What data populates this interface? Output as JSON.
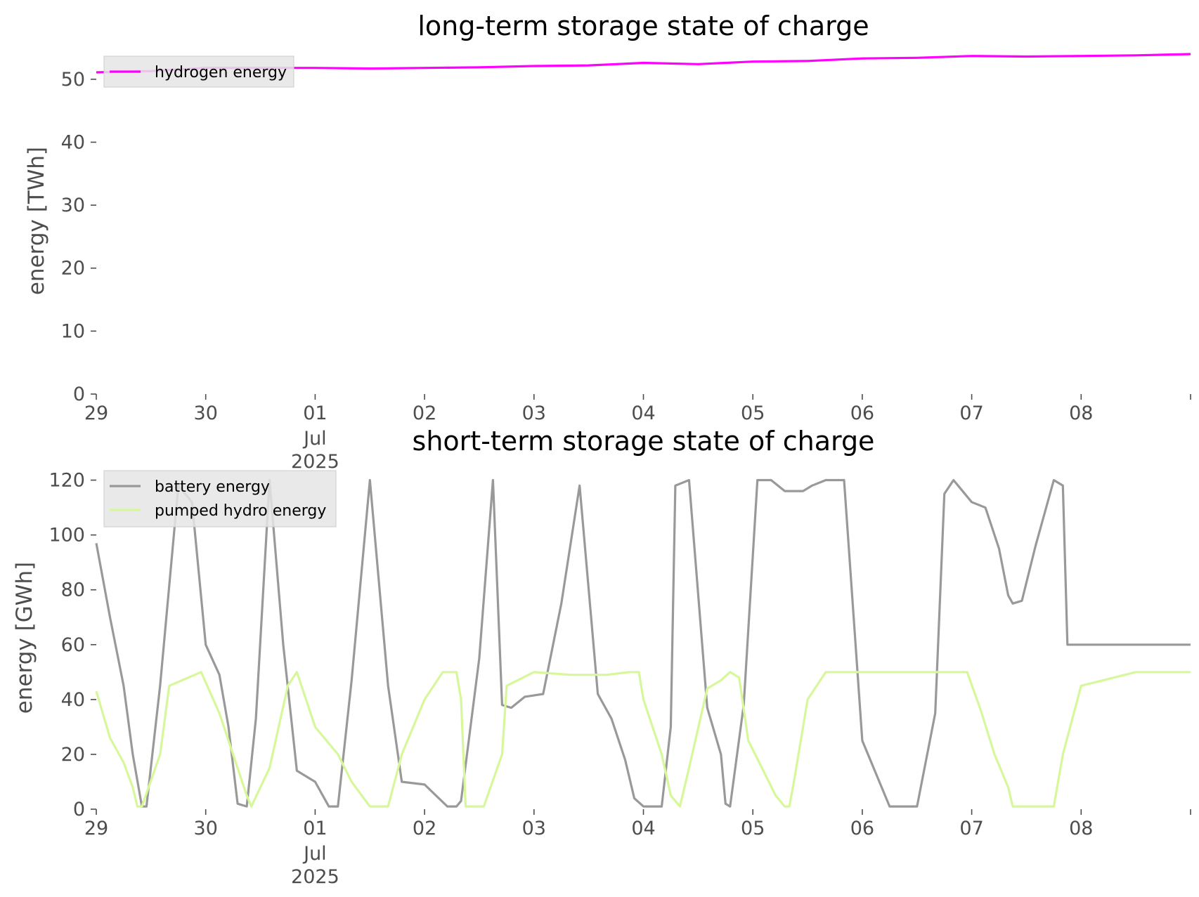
{
  "chart_data": [
    {
      "type": "line",
      "title": "long-term storage state of charge",
      "ylabel": "energy [TWh]",
      "xlabel": "",
      "ylim": [
        0,
        55
      ],
      "yticks": [
        0,
        10,
        20,
        30,
        40,
        50
      ],
      "x_range": [
        "2025-06-29 00:00",
        "2025-07-08 24:00"
      ],
      "x_ticks": [
        {
          "x": "2025-06-29",
          "label": "29"
        },
        {
          "x": "2025-06-30",
          "label": "30"
        },
        {
          "x": "2025-07-01",
          "label": "01",
          "sub": [
            "Jul",
            "2025"
          ]
        },
        {
          "x": "2025-07-02",
          "label": "02"
        },
        {
          "x": "2025-07-03",
          "label": "03"
        },
        {
          "x": "2025-07-04",
          "label": "04"
        },
        {
          "x": "2025-07-05",
          "label": "05"
        },
        {
          "x": "2025-07-06",
          "label": "06"
        },
        {
          "x": "2025-07-07",
          "label": "07"
        },
        {
          "x": "2025-07-08",
          "label": "08"
        }
      ],
      "legend": "top-left",
      "grid": false,
      "series": [
        {
          "name": "hydrogen energy",
          "color": "#ff00ff",
          "x": [
            "2025-06-29 00:00",
            "2025-06-29 12:00",
            "2025-06-30 00:00",
            "2025-06-30 12:00",
            "2025-07-01 00:00",
            "2025-07-01 12:00",
            "2025-07-02 00:00",
            "2025-07-02 12:00",
            "2025-07-03 00:00",
            "2025-07-03 12:00",
            "2025-07-04 00:00",
            "2025-07-04 12:00",
            "2025-07-05 00:00",
            "2025-07-05 12:00",
            "2025-07-06 00:00",
            "2025-07-06 12:00",
            "2025-07-07 00:00",
            "2025-07-07 12:00",
            "2025-07-08 00:00",
            "2025-07-08 12:00",
            "2025-07-08 24:00"
          ],
          "values": [
            51.1,
            51.3,
            51.8,
            51.8,
            51.8,
            51.7,
            51.8,
            51.9,
            52.1,
            52.2,
            52.6,
            52.4,
            52.8,
            52.9,
            53.3,
            53.4,
            53.7,
            53.6,
            53.7,
            53.8,
            54.0
          ]
        }
      ]
    },
    {
      "type": "line",
      "title": "short-term storage state of charge",
      "ylabel": "energy [GWh]",
      "xlabel": "",
      "ylim": [
        0,
        125
      ],
      "yticks": [
        0,
        20,
        40,
        60,
        80,
        100,
        120
      ],
      "x_range": [
        "2025-06-29 00:00",
        "2025-07-08 24:00"
      ],
      "x_ticks": [
        {
          "x": "2025-06-29",
          "label": "29"
        },
        {
          "x": "2025-06-30",
          "label": "30"
        },
        {
          "x": "2025-07-01",
          "label": "01",
          "sub": [
            "Jul",
            "2025"
          ]
        },
        {
          "x": "2025-07-02",
          "label": "02"
        },
        {
          "x": "2025-07-03",
          "label": "03"
        },
        {
          "x": "2025-07-04",
          "label": "04"
        },
        {
          "x": "2025-07-05",
          "label": "05"
        },
        {
          "x": "2025-07-06",
          "label": "06"
        },
        {
          "x": "2025-07-07",
          "label": "07"
        },
        {
          "x": "2025-07-08",
          "label": "08"
        }
      ],
      "legend": "top-left",
      "grid": false,
      "series": [
        {
          "name": "battery energy",
          "color": "#999999",
          "x": [
            "2025-06-29 00:00",
            "2025-06-29 03:00",
            "2025-06-29 06:00",
            "2025-06-29 08:00",
            "2025-06-29 10:00",
            "2025-06-29 11:00",
            "2025-06-29 14:00",
            "2025-06-29 18:00",
            "2025-06-29 21:00",
            "2025-06-30 00:00",
            "2025-06-30 03:00",
            "2025-06-30 05:00",
            "2025-06-30 07:00",
            "2025-06-30 09:00",
            "2025-06-30 11:00",
            "2025-06-30 14:00",
            "2025-06-30 17:00",
            "2025-06-30 20:00",
            "2025-07-01 00:00",
            "2025-07-01 03:00",
            "2025-07-01 05:00",
            "2025-07-01 08:00",
            "2025-07-01 12:00",
            "2025-07-01 16:00",
            "2025-07-01 19:00",
            "2025-07-02 00:00",
            "2025-07-02 05:00",
            "2025-07-02 07:00",
            "2025-07-02 08:00",
            "2025-07-02 12:00",
            "2025-07-02 15:00",
            "2025-07-02 17:00",
            "2025-07-02 19:00",
            "2025-07-02 22:00",
            "2025-07-03 02:00",
            "2025-07-03 06:00",
            "2025-07-03 10:00",
            "2025-07-03 14:00",
            "2025-07-03 17:00",
            "2025-07-03 20:00",
            "2025-07-03 22:00",
            "2025-07-04 00:00",
            "2025-07-04 04:00",
            "2025-07-04 06:00",
            "2025-07-04 07:00",
            "2025-07-04 10:00",
            "2025-07-04 14:00",
            "2025-07-04 17:00",
            "2025-07-04 18:00",
            "2025-07-04 19:00",
            "2025-07-04 22:00",
            "2025-07-05 01:00",
            "2025-07-05 04:00",
            "2025-07-05 07:00",
            "2025-07-05 08:00",
            "2025-07-05 11:00",
            "2025-07-05 13:00",
            "2025-07-05 16:00",
            "2025-07-05 20:00",
            "2025-07-06 00:00",
            "2025-07-06 06:00",
            "2025-07-06 12:00",
            "2025-07-06 16:00",
            "2025-07-06 18:00",
            "2025-07-06 20:00",
            "2025-07-07 00:00",
            "2025-07-07 03:00",
            "2025-07-07 06:00",
            "2025-07-07 08:00",
            "2025-07-07 09:00",
            "2025-07-07 11:00",
            "2025-07-07 14:00",
            "2025-07-07 18:00",
            "2025-07-07 20:00",
            "2025-07-07 21:00",
            "2025-07-08 00:00",
            "2025-07-08 02:00",
            "2025-07-08 04:00",
            "2025-07-08 06:00",
            "2025-07-08 08:00",
            "2025-07-08 10:00",
            "2025-07-08 13:00",
            "2025-07-08 15:00",
            "2025-07-08 17:00",
            "2025-07-08 18:00",
            "2025-07-08 20:00",
            "2025-07-08 22:00",
            "2025-07-08 24:00"
          ],
          "values": [
            97,
            70,
            45,
            20,
            1,
            1,
            45,
            118,
            112,
            60,
            49,
            30,
            2,
            1,
            33,
            120,
            60,
            14,
            10,
            1,
            1,
            47,
            120,
            45,
            10,
            9,
            1,
            1,
            3,
            55,
            120,
            38,
            37,
            41,
            42,
            75,
            118,
            42,
            33,
            18,
            4,
            1,
            1,
            30,
            118,
            120,
            37,
            20,
            2,
            1,
            38,
            120,
            120,
            116,
            116,
            116,
            118,
            120,
            120,
            25,
            1,
            1,
            35,
            115,
            120,
            112,
            110,
            95,
            78,
            75,
            76,
            96,
            120,
            118,
            60,
            60,
            60,
            60,
            60,
            60,
            60,
            60,
            60,
            60,
            60,
            60,
            60,
            60
          ],
          "note_ignore": false
        },
        {
          "name": "pumped hydro energy",
          "color": "#d6f79a",
          "x": [
            "2025-06-29 00:00",
            "2025-06-29 03:00",
            "2025-06-29 06:00",
            "2025-06-29 08:00",
            "2025-06-29 09:00",
            "2025-06-29 10:00",
            "2025-06-29 14:00",
            "2025-06-29 16:00",
            "2025-06-29 23:00",
            "2025-06-30 03:00",
            "2025-06-30 06:00",
            "2025-06-30 09:00",
            "2025-06-30 10:00",
            "2025-06-30 14:00",
            "2025-06-30 18:00",
            "2025-06-30 20:00",
            "2025-06-30 22:00",
            "2025-07-01 00:00",
            "2025-07-01 05:00",
            "2025-07-01 08:00",
            "2025-07-01 12:00",
            "2025-07-01 16:00",
            "2025-07-01 19:00",
            "2025-07-02 00:00",
            "2025-07-02 04:00",
            "2025-07-02 07:00",
            "2025-07-02 08:00",
            "2025-07-02 09:00",
            "2025-07-02 13:00",
            "2025-07-02 17:00",
            "2025-07-02 18:00",
            "2025-07-03 00:00",
            "2025-07-03 08:00",
            "2025-07-03 16:00",
            "2025-07-03 21:00",
            "2025-07-03 23:00",
            "2025-07-04 00:00",
            "2025-07-04 04:00",
            "2025-07-04 06:00",
            "2025-07-04 08:00",
            "2025-07-04 10:00",
            "2025-07-04 14:00",
            "2025-07-04 17:00",
            "2025-07-04 19:00",
            "2025-07-04 21:00",
            "2025-07-04 23:00",
            "2025-07-05 02:00",
            "2025-07-05 05:00",
            "2025-07-05 07:00",
            "2025-07-05 08:00",
            "2025-07-05 09:00",
            "2025-07-05 12:00",
            "2025-07-05 16:00",
            "2025-07-05 20:00",
            "2025-07-06 00:00",
            "2025-07-06 12:00",
            "2025-07-06 23:00",
            "2025-07-07 02:00",
            "2025-07-07 05:00",
            "2025-07-07 08:00",
            "2025-07-07 09:00",
            "2025-07-07 13:00",
            "2025-07-07 18:00",
            "2025-07-07 20:00",
            "2025-07-08 00:00",
            "2025-07-08 12:00",
            "2025-07-08 24:00"
          ],
          "values": [
            43,
            26,
            17,
            8,
            1,
            1,
            20,
            45,
            50,
            35,
            20,
            5,
            1,
            15,
            45,
            50,
            40,
            30,
            20,
            10,
            1,
            1,
            20,
            40,
            50,
            50,
            40,
            1,
            1,
            20,
            45,
            50,
            49,
            49,
            50,
            50,
            40,
            20,
            5,
            1,
            15,
            44,
            47,
            50,
            48,
            25,
            15,
            5,
            1,
            1,
            10,
            40,
            50,
            50,
            50,
            50,
            50,
            36,
            20,
            8,
            1,
            1,
            1,
            20,
            45,
            50,
            50
          ]
        }
      ]
    }
  ]
}
